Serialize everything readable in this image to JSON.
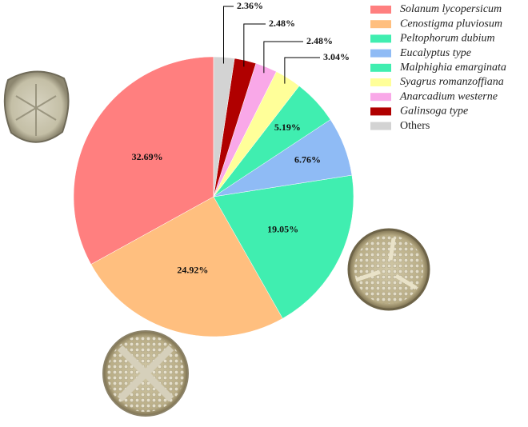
{
  "chart_data": {
    "type": "pie",
    "direction": "counterclockwise",
    "categories": [
      "Solanum lycopersicum",
      "Cenostigma pluviosum",
      "Peltophorum dubium",
      "Eucalyptus type",
      "Malphighia emarginata",
      "Syagrus romanzoffiana",
      "Anarcadium westerne",
      "Galinsoga type",
      "Others"
    ],
    "values": [
      32.69,
      24.92,
      19.05,
      6.76,
      5.19,
      3.04,
      2.48,
      2.48,
      2.36
    ],
    "value_labels": [
      "32.69%",
      "24.92%",
      "19.05%",
      "6.76%",
      "5.19%",
      "3.04%",
      "2.48%",
      "2.48%",
      "2.36%"
    ],
    "colors": [
      "#ff7f7f",
      "#ffbf7f",
      "#40eeb0",
      "#8fbbf5",
      "#40eeb0",
      "#ffff99",
      "#f9a8e8",
      "#b00000",
      "#d3d3d3"
    ]
  }
}
